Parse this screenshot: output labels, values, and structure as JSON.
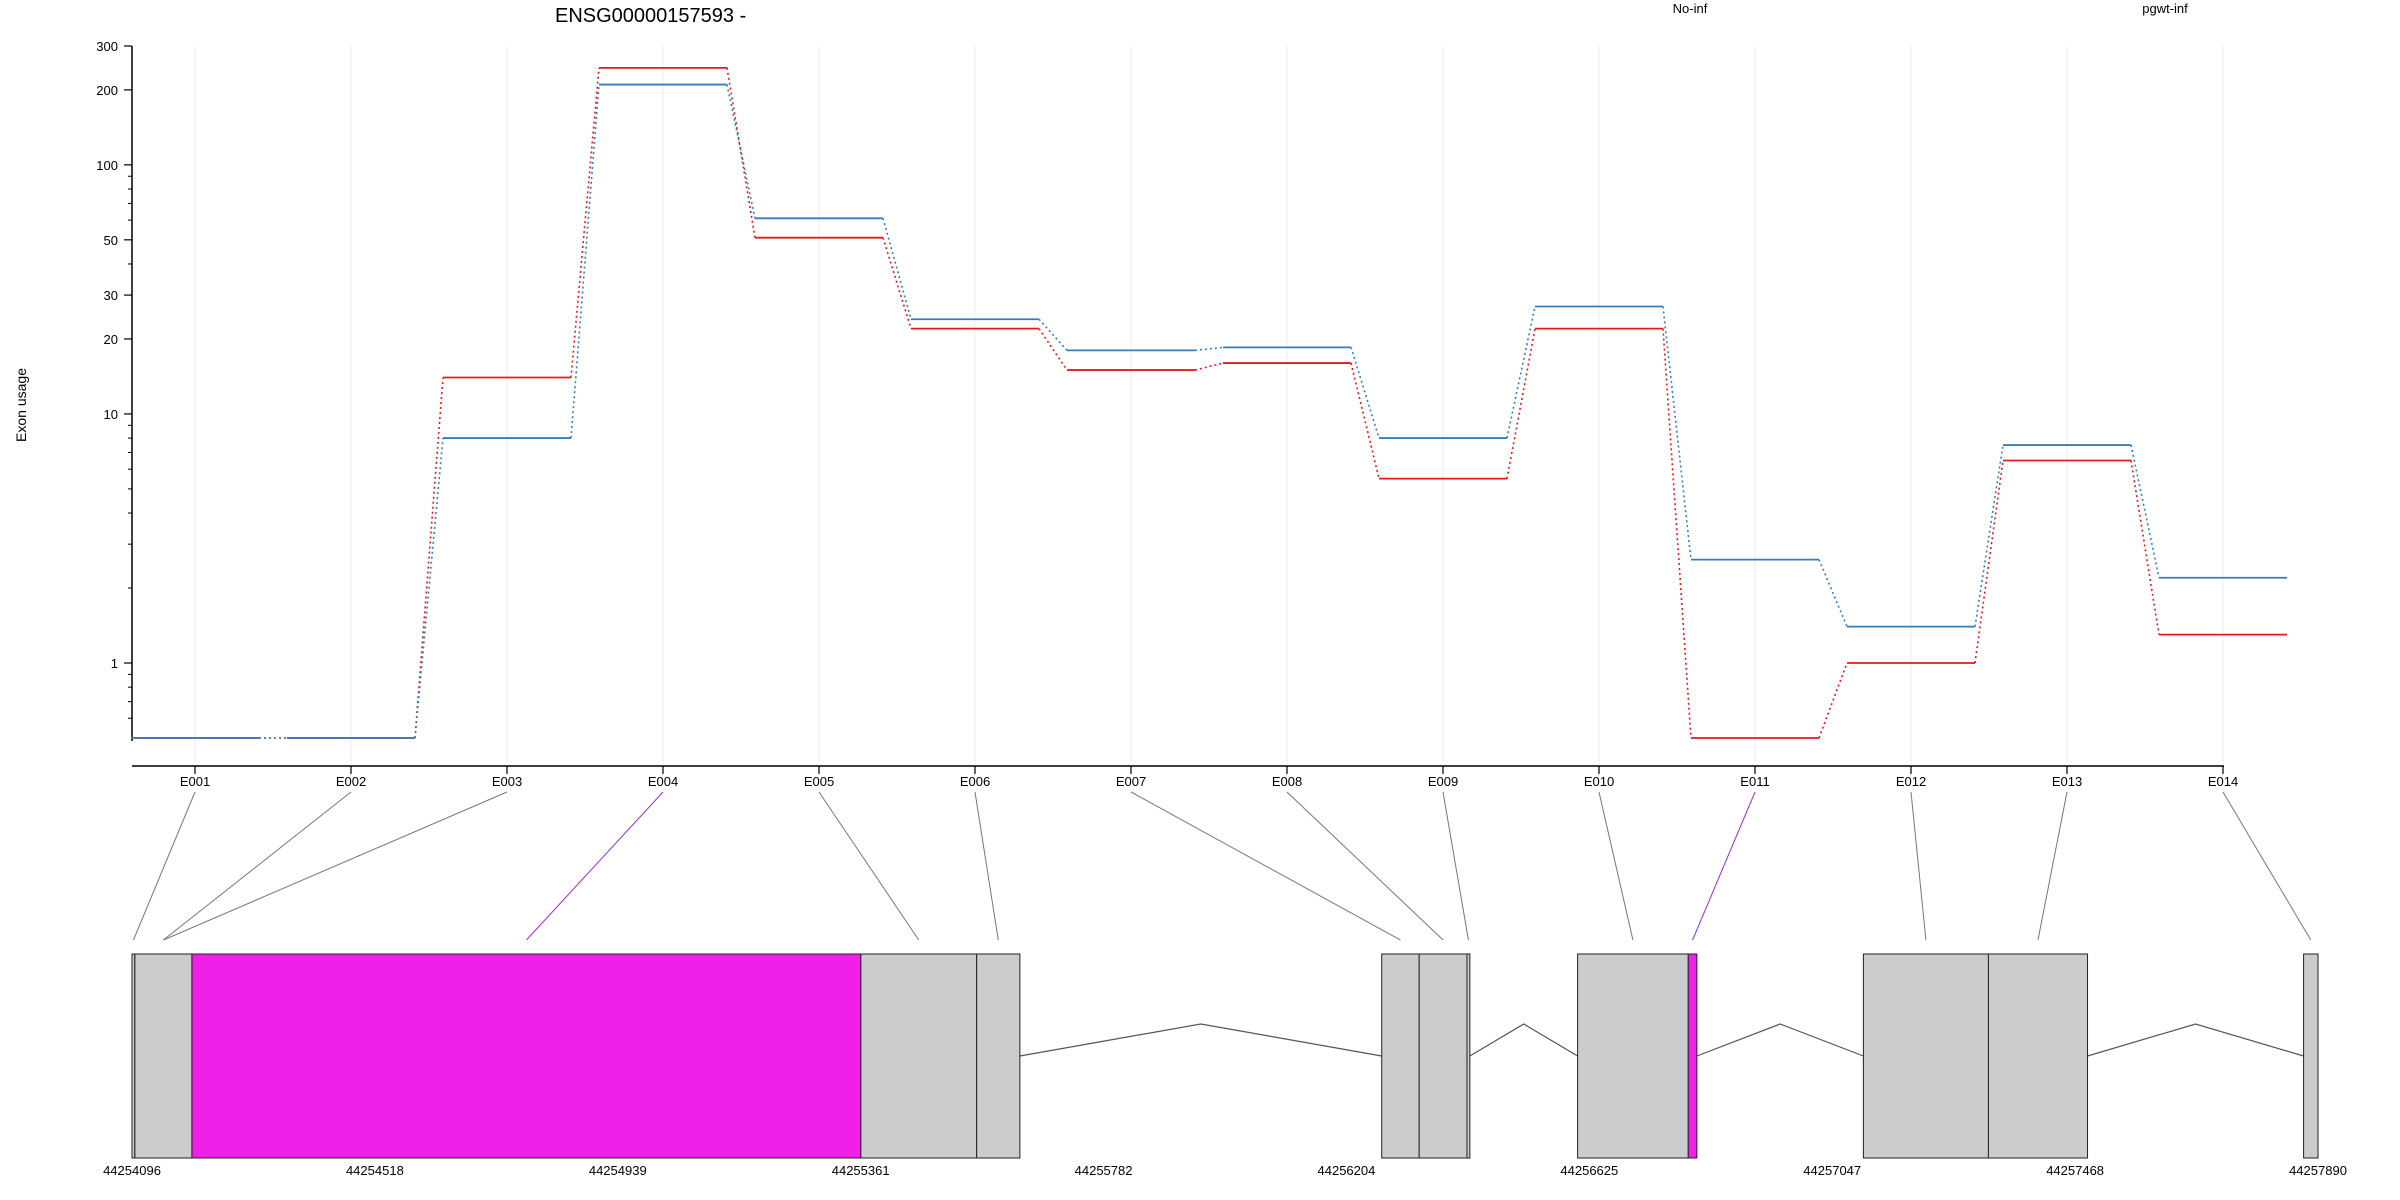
{
  "chart_data": {
    "type": "line",
    "title": "ENSG00000157593 -",
    "xlabel": "",
    "ylabel": "Exon usage",
    "yscale": "log",
    "ylim": [
      0.5,
      300
    ],
    "y_ticks": [
      {
        "label": "300",
        "value": 300
      },
      {
        "label": "200",
        "value": 200
      },
      {
        "label": "100",
        "value": 100
      },
      {
        "label": "50",
        "value": 50
      },
      {
        "label": "30",
        "value": 30
      },
      {
        "label": "20",
        "value": 20
      },
      {
        "label": "10",
        "value": 10
      },
      {
        "label": "1",
        "value": 1
      }
    ],
    "categories": [
      "E001",
      "E002",
      "E003",
      "E004",
      "E005",
      "E006",
      "E007",
      "E008",
      "E009",
      "E010",
      "E011",
      "E012",
      "E013",
      "E014"
    ],
    "legend_position": "top",
    "series": [
      {
        "name": "No-inf",
        "color": "#e41a1c",
        "values": [
          0.5,
          0.5,
          14,
          245,
          51,
          22,
          15,
          16,
          5.5,
          22,
          0.5,
          1.0,
          6.5,
          1.3
        ]
      },
      {
        "name": "pgwt-inf",
        "color": "#377eb8",
        "values": [
          0.5,
          0.5,
          8,
          210,
          61,
          24,
          18,
          18.5,
          8,
          27,
          2.6,
          1.4,
          7.5,
          2.2
        ]
      }
    ],
    "gene_model": {
      "coordinate_labels": [
        "44254096",
        "44254518",
        "44254939",
        "44255361",
        "44255782",
        "44256204",
        "44256625",
        "44257047",
        "44257468",
        "44257890"
      ],
      "coordinate_range": [
        44254096,
        44257890
      ],
      "exons": [
        {
          "id": "E001",
          "start": 44254096,
          "end": 44254101,
          "highlight": false
        },
        {
          "id": "E002",
          "start": 44254101,
          "end": 44254200,
          "highlight": false
        },
        {
          "id": "E003",
          "start": 44254101,
          "end": 44254200,
          "highlight": false
        },
        {
          "id": "E004",
          "start": 44254200,
          "end": 44255361,
          "highlight": true
        },
        {
          "id": "E005",
          "start": 44255361,
          "end": 44255562,
          "highlight": false
        },
        {
          "id": "E006",
          "start": 44255562,
          "end": 44255637,
          "highlight": false
        },
        {
          "id": "E007",
          "start": 44256265,
          "end": 44256330,
          "highlight": false
        },
        {
          "id": "E008",
          "start": 44256330,
          "end": 44256413,
          "highlight": false
        },
        {
          "id": "E009",
          "start": 44256413,
          "end": 44256418,
          "highlight": false
        },
        {
          "id": "E010",
          "start": 44256605,
          "end": 44256797,
          "highlight": false
        },
        {
          "id": "E011",
          "start": 44256797,
          "end": 44256812,
          "highlight": true
        },
        {
          "id": "E012",
          "start": 44257101,
          "end": 44257318,
          "highlight": false
        },
        {
          "id": "E013",
          "start": 44257318,
          "end": 44257490,
          "highlight": false
        },
        {
          "id": "E014",
          "start": 44257865,
          "end": 44257890,
          "highlight": false
        }
      ],
      "introns": [
        [
          44255637,
          44256265
        ],
        [
          44256418,
          44256605
        ],
        [
          44256812,
          44257101
        ],
        [
          44257490,
          44257865
        ]
      ],
      "exon_color": "#cccccc",
      "highlight_color": "#f020e8"
    }
  }
}
